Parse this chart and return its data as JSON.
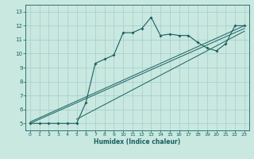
{
  "title": "",
  "xlabel": "Humidex (Indice chaleur)",
  "ylabel": "",
  "xlim": [
    -0.5,
    23.5
  ],
  "ylim": [
    4.5,
    13.5
  ],
  "xticks": [
    0,
    1,
    2,
    3,
    4,
    5,
    6,
    7,
    8,
    9,
    10,
    11,
    12,
    13,
    14,
    15,
    16,
    17,
    18,
    19,
    20,
    21,
    22,
    23
  ],
  "yticks": [
    5,
    6,
    7,
    8,
    9,
    10,
    11,
    12,
    13
  ],
  "bg_color": "#c8e8e0",
  "grid_color": "#a8cccc",
  "line_color": "#1a6060",
  "line1_x": [
    0,
    1,
    2,
    3,
    4,
    5,
    6,
    7,
    8,
    9,
    10,
    11,
    12,
    13,
    14,
    15,
    16,
    17,
    18,
    19,
    20,
    21,
    22,
    23
  ],
  "line1_y": [
    5,
    5,
    5,
    5,
    5,
    5,
    6.5,
    9.3,
    9.6,
    9.9,
    11.5,
    11.5,
    11.8,
    12.6,
    11.3,
    11.4,
    11.3,
    11.3,
    10.8,
    10.4,
    10.2,
    10.7,
    12.0,
    12.0
  ],
  "line2_x": [
    0,
    23
  ],
  "line2_y": [
    5.0,
    11.8
  ],
  "line3_x": [
    0,
    23
  ],
  "line3_y": [
    5.1,
    12.0
  ],
  "line4_x": [
    5,
    23
  ],
  "line4_y": [
    5.3,
    11.6
  ],
  "figsize": [
    3.2,
    2.0
  ],
  "dpi": 100
}
